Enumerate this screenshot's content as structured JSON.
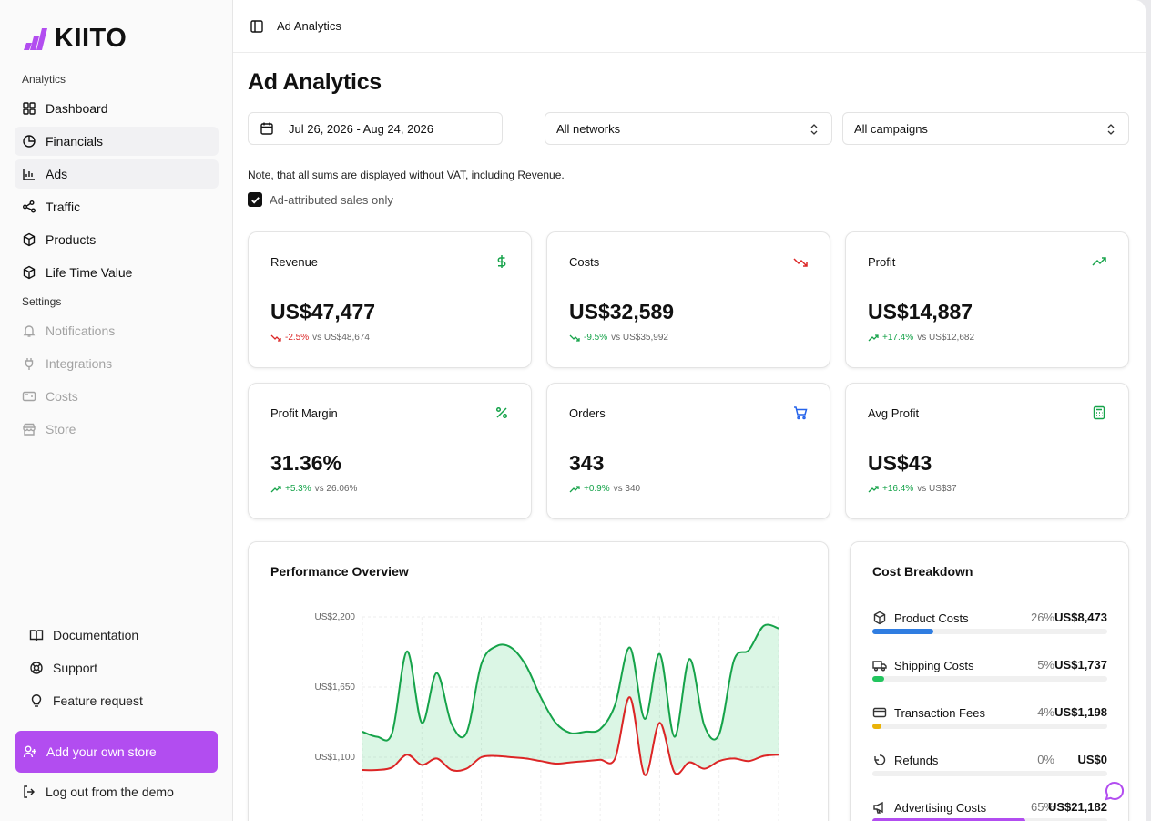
{
  "brand": {
    "name": "KIITO",
    "accent": "#b24df0"
  },
  "sidebar": {
    "analytics_label": "Analytics",
    "settings_label": "Settings",
    "analytics_items": [
      {
        "label": "Dashboard",
        "icon": "grid-icon"
      },
      {
        "label": "Financials",
        "icon": "pie-chart-icon"
      },
      {
        "label": "Ads",
        "icon": "bar-chart-icon"
      },
      {
        "label": "Traffic",
        "icon": "workflow-icon"
      },
      {
        "label": "Products",
        "icon": "box-icon"
      },
      {
        "label": "Life Time Value",
        "icon": "box-icon"
      }
    ],
    "settings_items": [
      {
        "label": "Notifications",
        "icon": "bell-icon"
      },
      {
        "label": "Integrations",
        "icon": "plug-icon"
      },
      {
        "label": "Costs",
        "icon": "wallet-icon"
      },
      {
        "label": "Store",
        "icon": "store-icon"
      }
    ],
    "bottom_items": [
      {
        "label": "Documentation",
        "icon": "book-icon"
      },
      {
        "label": "Support",
        "icon": "life-buoy-icon"
      },
      {
        "label": "Feature request",
        "icon": "lightbulb-icon"
      }
    ],
    "add_store_label": "Add your own store",
    "logout_label": "Log out from the demo"
  },
  "header": {
    "breadcrumb": "Ad Analytics"
  },
  "page": {
    "title": "Ad Analytics",
    "date_range": "Jul 26, 2026 - Aug 24, 2026",
    "network_select": "All networks",
    "campaign_select": "All campaigns",
    "note": "Note, that all sums are displayed without VAT, including Revenue.",
    "checkbox_label": "Ad-attributed sales only",
    "checkbox_checked": true
  },
  "kpis": [
    {
      "title": "Revenue",
      "value": "US$47,477",
      "delta": "-2.5%",
      "vs": "vs US$48,674",
      "trend": "down",
      "good": false,
      "icon": "dollar-icon",
      "icon_color": "#16a34a"
    },
    {
      "title": "Costs",
      "value": "US$32,589",
      "delta": "-9.5%",
      "vs": "vs US$35,992",
      "trend": "down",
      "good": true,
      "icon": "trending-down-icon",
      "icon_color": "#dc2626"
    },
    {
      "title": "Profit",
      "value": "US$14,887",
      "delta": "+17.4%",
      "vs": "vs US$12,682",
      "trend": "up",
      "good": true,
      "icon": "trending-up-icon",
      "icon_color": "#16a34a"
    },
    {
      "title": "Profit Margin",
      "value": "31.36%",
      "delta": "+5.3%",
      "vs": "vs 26.06%",
      "trend": "up",
      "good": true,
      "icon": "percent-icon",
      "icon_color": "#16a34a"
    },
    {
      "title": "Orders",
      "value": "343",
      "delta": "+0.9%",
      "vs": "vs 340",
      "trend": "up",
      "good": true,
      "icon": "cart-icon",
      "icon_color": "#2563eb"
    },
    {
      "title": "Avg Profit",
      "value": "US$43",
      "delta": "+16.4%",
      "vs": "vs US$37",
      "trend": "up",
      "good": true,
      "icon": "calculator-icon",
      "icon_color": "#16a34a"
    }
  ],
  "performance": {
    "title": "Performance Overview",
    "chart_data": {
      "type": "area",
      "title": "Performance Overview",
      "yticks": [
        "US$2,200",
        "US$1,650",
        "US$1,100"
      ],
      "ylim": [
        500,
        2200
      ],
      "grid": true,
      "series": [
        {
          "values": [
            1300,
            1260,
            1290,
            1930,
            1370,
            1760,
            1360,
            1290,
            1830,
            1970,
            1960,
            1820,
            1570,
            1370,
            1290,
            1300,
            1320,
            1510,
            1960,
            1400,
            1910,
            1260,
            1870,
            1350,
            1280,
            1860,
            1940,
            2130,
            2110
          ],
          "color": "#16a34a"
        },
        {
          "values": [
            1000,
            1000,
            1020,
            1120,
            1040,
            1090,
            1000,
            1010,
            1100,
            1110,
            1100,
            1090,
            1070,
            1050,
            1060,
            1070,
            1080,
            1090,
            1570,
            960,
            1370,
            980,
            1060,
            1010,
            1070,
            1090,
            1070,
            1110,
            1120
          ],
          "color": "#dc2626"
        }
      ]
    }
  },
  "cost_breakdown": {
    "title": "Cost Breakdown",
    "items": [
      {
        "label": "Product Costs",
        "pct": "26%",
        "amount": "US$8,473",
        "share": 0.26,
        "color": "#2f7de1",
        "icon": "box-icon"
      },
      {
        "label": "Shipping Costs",
        "pct": "5%",
        "amount": "US$1,737",
        "share": 0.05,
        "color": "#22c55e",
        "icon": "truck-icon"
      },
      {
        "label": "Transaction Fees",
        "pct": "4%",
        "amount": "US$1,198",
        "share": 0.04,
        "color": "#eab308",
        "icon": "credit-card-icon"
      },
      {
        "label": "Refunds",
        "pct": "0%",
        "amount": "US$0",
        "share": 0.0,
        "color": "#9ca3af",
        "icon": "refund-icon"
      },
      {
        "label": "Advertising Costs",
        "pct": "65%",
        "amount": "US$21,182",
        "share": 0.65,
        "color": "#b24df0",
        "icon": "megaphone-icon"
      }
    ]
  }
}
